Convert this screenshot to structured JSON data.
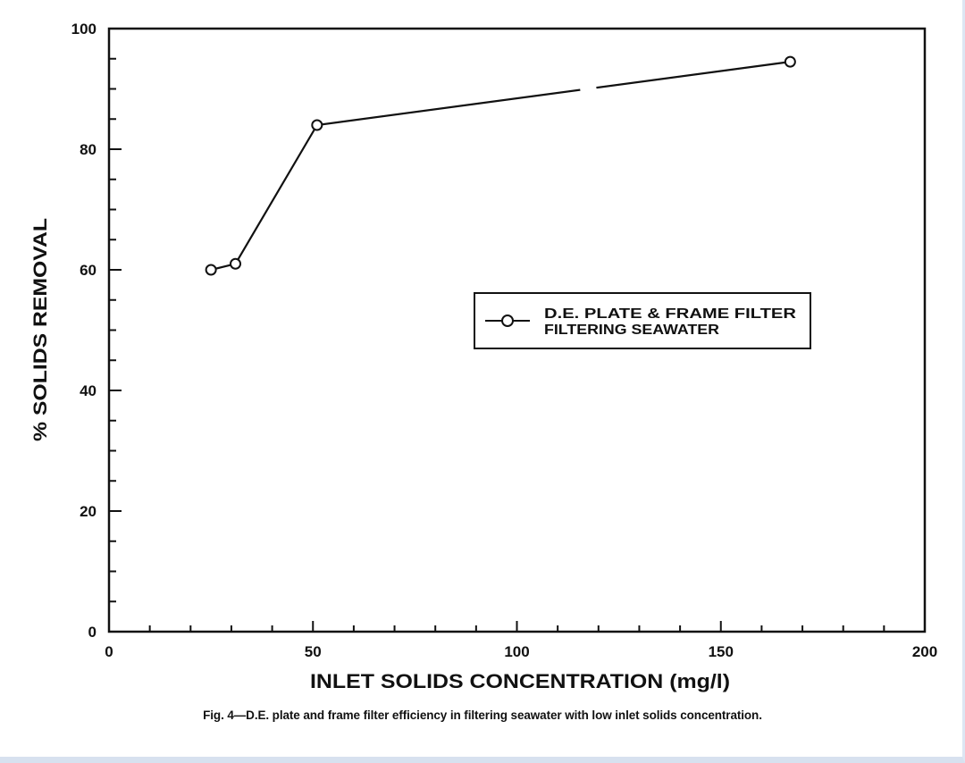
{
  "chart_data": {
    "type": "line",
    "title": "",
    "xlabel": "INLET SOLIDS CONCENTRATION (mg/l)",
    "ylabel": "% SOLIDS REMOVAL",
    "xlim": [
      0,
      200
    ],
    "ylim": [
      0,
      100
    ],
    "x_ticks": [
      "0",
      "50",
      "100",
      "150",
      "200"
    ],
    "y_ticks": [
      "0",
      "20",
      "40",
      "60",
      "80",
      "100"
    ],
    "x_minor_step": 10,
    "y_minor_step": 5,
    "grid": false,
    "legend_position": "center-right",
    "series": [
      {
        "name": "D.E. PLATE & FRAME FILTER FILTERING SEAWATER",
        "marker": "open-circle",
        "x": [
          25,
          31,
          51,
          167
        ],
        "values": [
          60,
          61,
          84,
          94.5
        ]
      }
    ]
  },
  "legend": {
    "line1": "D.E. PLATE & FRAME FILTER",
    "line2": "FILTERING SEAWATER"
  },
  "axes": {
    "xlabel": "INLET SOLIDS CONCENTRATION (mg/l)",
    "ylabel": "% SOLIDS REMOVAL",
    "x_tick_labels": [
      "0",
      "50",
      "100",
      "150",
      "200"
    ],
    "y_tick_labels": [
      "0",
      "20",
      "40",
      "60",
      "80",
      "100"
    ]
  },
  "caption": "Fig. 4—D.E. plate and frame filter efficiency in filtering seawater with low inlet solids concentration.",
  "colors": {
    "ink": "#111111",
    "background": "#ffffff",
    "frame": "#dde6f3"
  }
}
